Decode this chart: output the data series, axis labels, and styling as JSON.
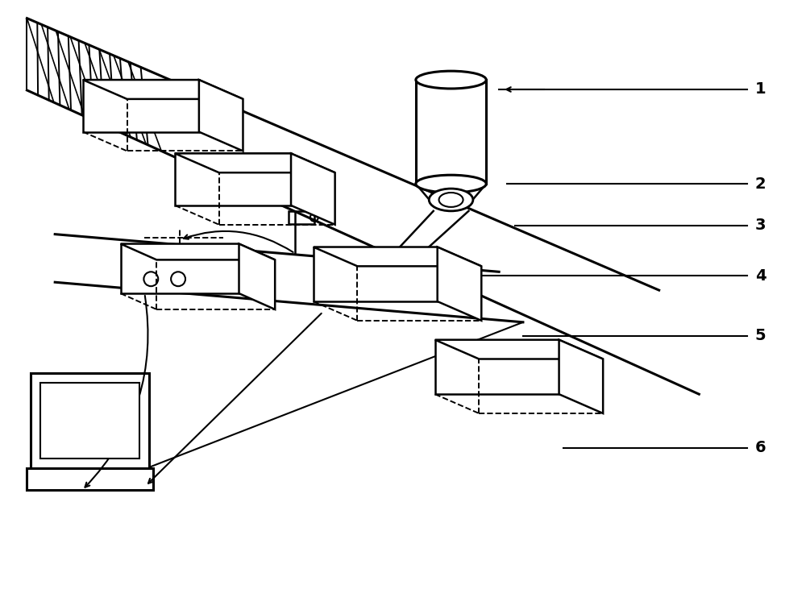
{
  "bg_color": "#ffffff",
  "line_color": "#000000",
  "figsize": [
    10.0,
    7.57
  ],
  "dpi": 100,
  "lw_main": 1.8,
  "lw_dashed": 1.4,
  "lw_annotation": 1.5
}
